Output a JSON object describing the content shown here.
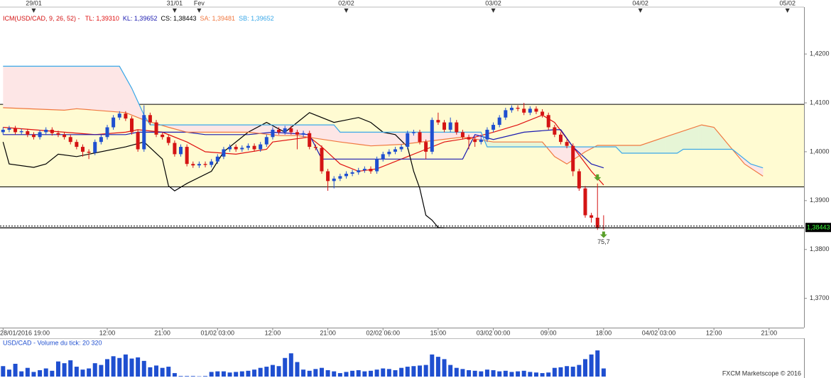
{
  "chart_data": {
    "type": "candlestick",
    "indicator": "ICM(USD/CAD, 9, 26, 52) -",
    "up_color": "#1f4fd0",
    "down_color": "#d41414",
    "open": [
      1.404,
      1.4045,
      1.4048,
      1.404,
      1.4042,
      1.4035,
      1.403,
      1.404,
      1.4045,
      1.4038,
      1.4035,
      1.403,
      1.402,
      1.401,
      1.4,
      1.3998,
      1.402,
      1.403,
      1.405,
      1.407,
      1.4078,
      1.4068,
      1.404,
      1.4005,
      1.4075,
      1.406,
      1.4035,
      1.403,
      1.4018,
      1.3995,
      1.401,
      1.3975,
      1.3972,
      1.3975,
      1.3973,
      1.398,
      1.399,
      1.4005,
      1.401,
      1.4005,
      1.4008,
      1.4012,
      1.4005,
      1.4015,
      1.403,
      1.4045,
      1.404,
      1.4048,
      1.404,
      1.4035,
      1.4038,
      1.401,
      1.4008,
      1.396,
      1.394,
      1.3945,
      1.395,
      1.3955,
      1.3958,
      1.3962,
      1.3965,
      1.396,
      1.3985,
      1.3995,
      1.4,
      1.4005,
      1.401,
      1.4038,
      1.404,
      1.402,
      1.4,
      1.4065,
      1.406,
      1.4045,
      1.406,
      1.404,
      1.403,
      1.4025,
      1.402,
      1.4025,
      1.4045,
      1.4055,
      1.407,
      1.4085,
      1.409,
      1.4088,
      1.408,
      1.4088,
      1.4082,
      1.4075,
      1.405,
      1.4035,
      1.402,
      1.4012,
      1.396,
      1.3925,
      1.387,
      1.3865,
      1.3845
    ],
    "high": [
      1.405,
      1.4053,
      1.4053,
      1.4047,
      1.4047,
      1.404,
      1.4045,
      1.405,
      1.405,
      1.4043,
      1.404,
      1.4035,
      1.4025,
      1.4015,
      1.4005,
      1.4025,
      1.4035,
      1.4055,
      1.4075,
      1.4083,
      1.4083,
      1.4073,
      1.4045,
      1.4095,
      1.408,
      1.4065,
      1.404,
      1.4035,
      1.4023,
      1.4015,
      1.4015,
      1.398,
      1.398,
      1.398,
      1.3985,
      1.3995,
      1.401,
      1.4015,
      1.4015,
      1.4013,
      1.4017,
      1.4017,
      1.402,
      1.4035,
      1.405,
      1.405,
      1.4053,
      1.4053,
      1.4045,
      1.4043,
      1.4043,
      1.4015,
      1.4013,
      1.3965,
      1.395,
      1.3955,
      1.396,
      1.3963,
      1.3967,
      1.397,
      1.397,
      1.399,
      1.4,
      1.4005,
      1.401,
      1.4015,
      1.4043,
      1.4045,
      1.4045,
      1.4025,
      1.407,
      1.408,
      1.4065,
      1.407,
      1.4065,
      1.4045,
      1.4035,
      1.403,
      1.403,
      1.405,
      1.406,
      1.4075,
      1.409,
      1.4095,
      1.4095,
      1.41,
      1.4093,
      1.4093,
      1.4087,
      1.408,
      1.4055,
      1.404,
      1.4025,
      1.4017,
      1.3965,
      1.393,
      1.3875,
      1.3935,
      1.387
    ],
    "low": [
      1.4035,
      1.404,
      1.4035,
      1.4035,
      1.403,
      1.4025,
      1.4025,
      1.4035,
      1.4033,
      1.403,
      1.4025,
      1.4015,
      1.4005,
      1.399,
      1.3985,
      1.3993,
      1.4015,
      1.4025,
      1.4045,
      1.4065,
      1.4063,
      1.4035,
      1.4,
      1.4,
      1.4055,
      1.403,
      1.4025,
      1.4013,
      1.399,
      1.399,
      1.397,
      1.3967,
      1.3967,
      1.3968,
      1.3968,
      1.3975,
      1.3985,
      1.4,
      1.4,
      1.4,
      1.4003,
      1.4,
      1.4,
      1.401,
      1.4025,
      1.4035,
      1.4035,
      1.4035,
      1.4005,
      1.403,
      1.4005,
      1.4003,
      1.3955,
      1.392,
      1.3925,
      1.394,
      1.3945,
      1.395,
      1.3953,
      1.3957,
      1.3955,
      1.3955,
      1.398,
      1.399,
      1.3995,
      1.4,
      1.4005,
      1.4033,
      1.4015,
      1.3985,
      1.3995,
      1.4055,
      1.404,
      1.404,
      1.4035,
      1.4025,
      1.4005,
      1.401,
      1.4015,
      1.402,
      1.404,
      1.405,
      1.4065,
      1.408,
      1.4083,
      1.4075,
      1.4075,
      1.4077,
      1.407,
      1.4045,
      1.403,
      1.4015,
      1.4007,
      1.395,
      1.392,
      1.3865,
      1.3855,
      1.384,
      1.384
    ],
    "close": [
      1.4045,
      1.4048,
      1.404,
      1.4042,
      1.4035,
      1.403,
      1.404,
      1.4045,
      1.4038,
      1.4035,
      1.403,
      1.402,
      1.401,
      1.4,
      1.3998,
      1.402,
      1.403,
      1.405,
      1.407,
      1.4078,
      1.4068,
      1.404,
      1.4005,
      1.4075,
      1.406,
      1.4035,
      1.403,
      1.4018,
      1.3995,
      1.401,
      1.3975,
      1.3972,
      1.3975,
      1.3973,
      1.398,
      1.399,
      1.4005,
      1.401,
      1.4005,
      1.4008,
      1.4012,
      1.4005,
      1.4015,
      1.403,
      1.4045,
      1.404,
      1.4048,
      1.404,
      1.4035,
      1.4038,
      1.401,
      1.4008,
      1.396,
      1.394,
      1.3945,
      1.395,
      1.3955,
      1.3958,
      1.3962,
      1.3965,
      1.396,
      1.3985,
      1.3995,
      1.4,
      1.4005,
      1.401,
      1.4038,
      1.404,
      1.402,
      1.4,
      1.4065,
      1.406,
      1.4045,
      1.406,
      1.404,
      1.403,
      1.4025,
      1.402,
      1.4025,
      1.4045,
      1.4055,
      1.407,
      1.4085,
      1.409,
      1.4088,
      1.408,
      1.4088,
      1.4082,
      1.4075,
      1.405,
      1.4035,
      1.402,
      1.4012,
      1.396,
      1.3925,
      1.387,
      1.3865,
      1.3845,
      1.3844
    ],
    "series": [
      {
        "name": "TL: 1,39310",
        "color": "#e01010",
        "x": [
          0,
          10,
          15,
          20,
          22,
          26,
          30,
          33,
          38,
          43,
          44,
          50,
          52,
          55,
          58,
          61,
          66,
          69,
          72,
          77,
          80,
          84,
          88,
          90,
          93,
          96,
          98
        ],
        "values": [
          1.405,
          1.404,
          1.4035,
          1.404,
          1.4045,
          1.404,
          1.402,
          1.4,
          1.3995,
          1.4005,
          1.402,
          1.403,
          1.401,
          1.3975,
          1.396,
          1.3965,
          1.399,
          1.4005,
          1.402,
          1.403,
          1.404,
          1.4055,
          1.4075,
          1.406,
          1.401,
          1.396,
          1.3932
        ]
      },
      {
        "name": "KL: 1,39652",
        "color": "#1a1ab0",
        "x": [
          0,
          20,
          22,
          30,
          33,
          40,
          44,
          50,
          52,
          75,
          77,
          80,
          85,
          90,
          91,
          93,
          96,
          98
        ],
        "values": [
          1.4035,
          1.4035,
          1.404,
          1.404,
          1.4035,
          1.4035,
          1.404,
          1.4035,
          1.3985,
          1.3985,
          1.4035,
          1.4025,
          1.404,
          1.4045,
          1.4045,
          1.401,
          1.3975,
          1.3967
        ]
      },
      {
        "name": "CS: 1,38443",
        "color": "#000000",
        "x": [
          0,
          1,
          5,
          7,
          9,
          12,
          20,
          23,
          26,
          27,
          28,
          30,
          34,
          36,
          40,
          43,
          46,
          48,
          50,
          54,
          56,
          58,
          60,
          62,
          64,
          66,
          67,
          68,
          69,
          70,
          71,
          72
        ],
        "values": [
          1.402,
          1.3975,
          1.3968,
          1.3975,
          1.3995,
          1.399,
          1.401,
          1.402,
          1.3985,
          1.393,
          1.392,
          1.3935,
          1.396,
          1.4,
          1.404,
          1.406,
          1.404,
          1.406,
          1.408,
          1.406,
          1.4065,
          1.407,
          1.406,
          1.404,
          1.4035,
          1.401,
          1.396,
          1.3925,
          1.387,
          1.386,
          1.3845,
          1.3844
        ]
      },
      {
        "name": "SA: 1,39481",
        "color": "#f07840",
        "x": [
          0,
          10,
          12,
          20,
          23,
          27,
          30,
          40,
          45,
          48,
          55,
          60,
          65,
          75,
          80,
          88,
          90,
          92,
          95,
          97,
          104,
          108,
          114,
          116,
          118,
          121,
          124
        ],
        "values": [
          1.409,
          1.4085,
          1.4088,
          1.408,
          1.4065,
          1.405,
          1.404,
          1.404,
          1.4033,
          1.4033,
          1.402,
          1.4012,
          1.4015,
          1.403,
          1.402,
          1.402,
          1.399,
          1.3975,
          1.4,
          1.4013,
          1.4013,
          1.403,
          1.4055,
          1.405,
          1.402,
          1.3975,
          1.395
        ]
      },
      {
        "name": "SB: 1,39652",
        "color": "#3aa8e8",
        "x": [
          0,
          19,
          21,
          23,
          24,
          54,
          55,
          78,
          79,
          100,
          101,
          110,
          111,
          119,
          122,
          124
        ],
        "values": [
          1.4175,
          1.4175,
          1.413,
          1.4075,
          1.4055,
          1.4055,
          1.404,
          1.404,
          1.401,
          1.401,
          1.3997,
          1.3997,
          1.4005,
          1.4005,
          1.3975,
          1.3967
        ]
      }
    ],
    "cloud_up_color": "#e6f5d6",
    "cloud_down_color": "#fde6e6",
    "levels": [
      1.4097,
      1.3928
    ],
    "level_fill": "#fffbd2",
    "last_price": {
      "value": 1.38443,
      "label": "1,38443"
    },
    "signals": {
      "x": [
        97,
        98
      ],
      "values": [
        1.3945,
        1.3828
      ],
      "color": "#5aa02c"
    },
    "signal_label": "75,7",
    "xlim": [
      -0.5,
      130.7
    ],
    "ylim": [
      1.364,
      1.4296
    ],
    "yticks": [
      {
        "value": 1.37,
        "label": "1,3700"
      },
      {
        "value": 1.38,
        "label": "1,3800"
      },
      {
        "value": 1.39,
        "label": "1,3900"
      },
      {
        "value": 1.4,
        "label": "1,4000"
      },
      {
        "value": 1.41,
        "label": "1,4100"
      },
      {
        "value": 1.42,
        "label": "1,4200"
      }
    ],
    "xticks": [
      {
        "value": 0,
        "label": "28/01/2016 19:00"
      },
      {
        "value": 17,
        "label": "12:00"
      },
      {
        "value": 26,
        "label": "21:00"
      },
      {
        "value": 35,
        "label": "01/02 03:00"
      },
      {
        "value": 44,
        "label": "12:00"
      },
      {
        "value": 53,
        "label": "21:00"
      },
      {
        "value": 62,
        "label": "02/02 06:00"
      },
      {
        "value": 71,
        "label": "15:00"
      },
      {
        "value": 80,
        "label": "03/02 00:00"
      },
      {
        "value": 89,
        "label": "09:00"
      },
      {
        "value": 98,
        "label": "18:00"
      },
      {
        "value": 107,
        "label": "04/02 03:00"
      },
      {
        "value": 116,
        "label": "12:00"
      },
      {
        "value": 125,
        "label": "21:00"
      }
    ],
    "top_ticks": [
      {
        "value": 5,
        "label": "29/01"
      },
      {
        "value": 28,
        "label": "31/01"
      },
      {
        "value": 32,
        "label": "Fev"
      },
      {
        "value": 56,
        "label": "02/02"
      },
      {
        "value": 80,
        "label": "03/02"
      },
      {
        "value": 104,
        "label": "04/02"
      },
      {
        "value": 128,
        "label": "05/02"
      }
    ],
    "volume": {
      "title": "USD/CAD - Volume du tick: 20 320",
      "color": "#1f4fd0",
      "ylim": [
        0,
        500
      ],
      "values": [
        180,
        120,
        220,
        90,
        150,
        80,
        110,
        140,
        100,
        260,
        230,
        280,
        170,
        120,
        140,
        230,
        200,
        300,
        350,
        320,
        380,
        310,
        330,
        270,
        160,
        190,
        150,
        170,
        60,
        10,
        10,
        10,
        5,
        10,
        80,
        90,
        90,
        70,
        80,
        90,
        100,
        120,
        150,
        170,
        200,
        180,
        320,
        400,
        250,
        120,
        100,
        130,
        150,
        110,
        90,
        60,
        80,
        100,
        110,
        90,
        100,
        120,
        140,
        130,
        110,
        150,
        170,
        180,
        190,
        200,
        380,
        340,
        300,
        200,
        150,
        130,
        110,
        100,
        90,
        120,
        110,
        90,
        100,
        80,
        90,
        100,
        80,
        70,
        60,
        70,
        150,
        160,
        180,
        170,
        200,
        300,
        380,
        450,
        140
      ]
    },
    "credit": "FXCM Marketscope © 2016"
  }
}
